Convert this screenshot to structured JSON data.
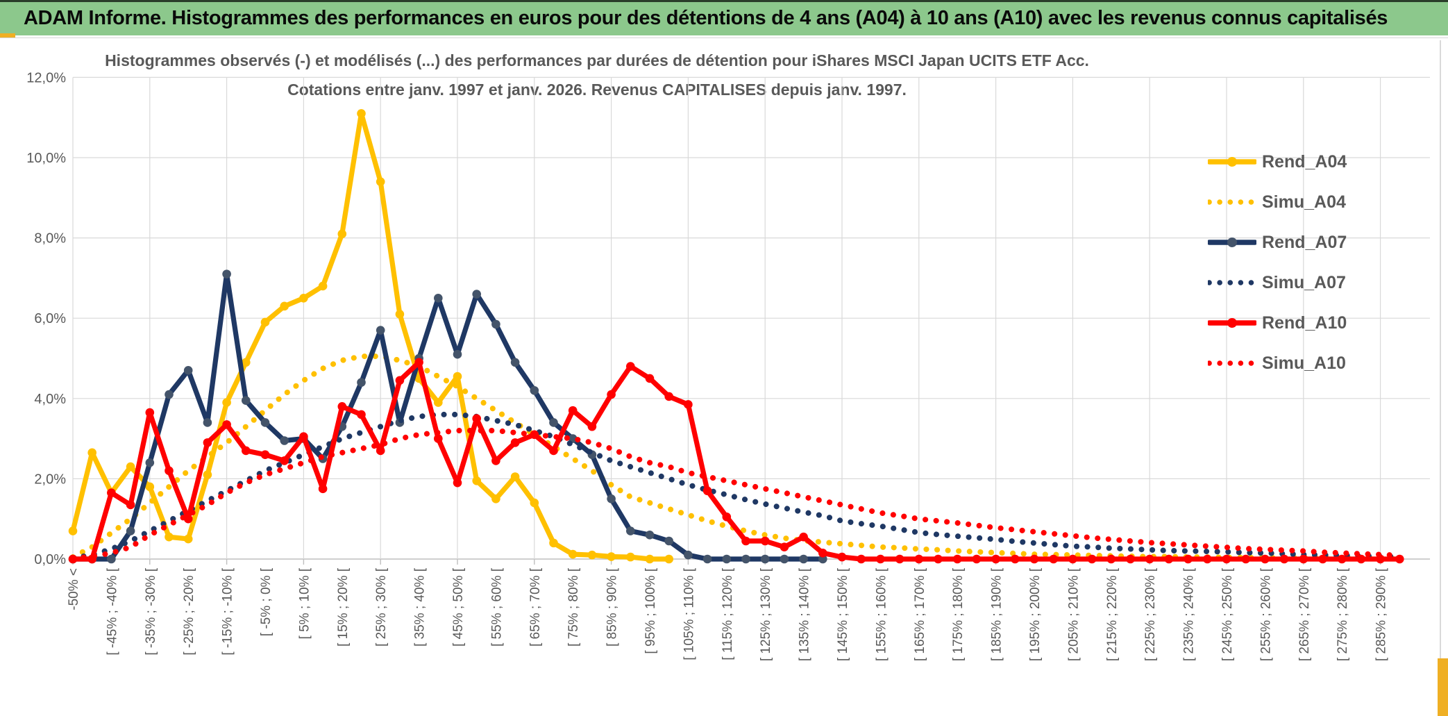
{
  "window": {
    "title": "ADAM Informe. Histogrammes des performances en euros pour des détentions de 4 ans (A04) à 10 ans (A10) avec les revenus connus capitalisés"
  },
  "chart_data": {
    "type": "line",
    "title_line1": "Histogrammes observés (-) et modélisés (...) des performances par durées de détention pour iShares MSCI Japan UCITS ETF Acc.",
    "title_line2": "Cotations entre janv. 1997 et janv. 2026. Revenus CAPITALISES depuis janv. 1997.",
    "ylabel": "",
    "xlabel": "",
    "ylim": [
      0,
      12
    ],
    "y_ticks": [
      "0,0%",
      "2,0%",
      "4,0%",
      "6,0%",
      "8,0%",
      "10,0%",
      "12,0%"
    ],
    "grid": true,
    "legend_position": "right",
    "n_bins": 70,
    "x_tick_every": 2,
    "x_tick_labels": [
      "-50% <",
      "[ -45% ; -40% [",
      "[ -35% ; -30% [",
      "[ -25% ; -20% [",
      "[ -15% ; -10% [",
      "[ -5% ; 0% [",
      "[ 5% ; 10% [",
      "[ 15% ; 20% [",
      "[ 25% ; 30% [",
      "[ 35% ; 40% [",
      "[ 45% ; 50% [",
      "[ 55% ; 60% [",
      "[ 65% ; 70% [",
      "[ 75% ; 80% [",
      "[ 85% ; 90% [",
      "[ 95% ; 100% [",
      "[ 105% ; 110% [",
      "[ 115% ; 120% [",
      "[ 125% ; 130% [",
      "[ 135% ; 140% [",
      "[ 145% ; 150% [",
      "[ 155% ; 160% [",
      "[ 165% ; 170% [",
      "[ 175% ; 180% [",
      "[ 185% ; 190% [",
      "[ 195% ; 200% [",
      "[ 205% ; 210% [",
      "[ 215% ; 220% [",
      "[ 225% ; 230% [",
      "[ 235% ; 240% [",
      "[ 245% ; 250% [",
      "[ 255% ; 260% [",
      "[ 265% ; 270% [",
      "[ 275% ; 280% [",
      "[ 285% ; 290% ["
    ],
    "series": [
      {
        "name": "Rend_A04",
        "style": "solid",
        "color": "#FFC000",
        "marker_color": "#FFC000",
        "values": [
          0.7,
          2.65,
          1.65,
          2.3,
          1.8,
          0.55,
          0.5,
          2.1,
          3.9,
          4.9,
          5.9,
          6.3,
          6.5,
          6.8,
          8.1,
          11.1,
          9.4,
          6.1,
          4.5,
          3.9,
          4.55,
          1.95,
          1.5,
          2.05,
          1.4,
          0.4,
          0.12,
          0.1,
          0.06,
          0.05,
          0,
          0,
          null,
          null,
          null,
          null,
          null,
          null,
          null,
          null,
          null,
          null,
          null,
          null,
          null,
          null,
          null,
          null,
          null,
          null,
          null,
          null,
          null,
          null,
          null,
          null,
          null,
          null,
          null,
          null,
          null,
          null,
          null,
          null,
          null,
          null,
          null,
          null,
          null,
          null
        ]
      },
      {
        "name": "Simu_A04",
        "style": "dotted",
        "color": "#FFC000",
        "marker_color": "#FFC000",
        "values": [
          0.05,
          0.3,
          0.65,
          1.0,
          1.4,
          1.8,
          2.2,
          2.55,
          2.9,
          3.3,
          3.7,
          4.1,
          4.45,
          4.75,
          4.95,
          5.05,
          5.05,
          4.95,
          4.8,
          4.55,
          4.3,
          4.0,
          3.7,
          3.4,
          3.1,
          2.8,
          2.5,
          2.2,
          1.85,
          1.55,
          1.4,
          1.25,
          1.1,
          0.95,
          0.82,
          0.7,
          0.6,
          0.52,
          0.46,
          0.42,
          0.38,
          0.34,
          0.3,
          0.28,
          0.25,
          0.23,
          0.2,
          0.18,
          0.16,
          0.14,
          0.12,
          0.11,
          0.1,
          0.09,
          0.08,
          0.07,
          0.06,
          0.06,
          0.05,
          0.05,
          0.04,
          0.04,
          0.03,
          0.03,
          0.03,
          0.02,
          0.02,
          0.02,
          0.02,
          0.02
        ]
      },
      {
        "name": "Rend_A07",
        "style": "solid",
        "color": "#1F3864",
        "marker_color": "#44546A",
        "values": [
          0,
          0,
          0,
          0.7,
          2.4,
          4.1,
          4.7,
          3.4,
          7.1,
          3.95,
          3.4,
          2.95,
          3.0,
          2.5,
          3.3,
          4.4,
          5.7,
          3.4,
          5.0,
          6.5,
          5.1,
          6.6,
          5.85,
          4.9,
          4.2,
          3.4,
          3.0,
          2.6,
          1.5,
          0.7,
          0.6,
          0.45,
          0.1,
          0,
          0,
          0,
          0,
          0,
          0,
          0,
          null,
          null,
          null,
          null,
          null,
          null,
          null,
          null,
          null,
          null,
          null,
          null,
          null,
          null,
          null,
          null,
          null,
          null,
          null,
          null,
          null,
          null,
          null,
          null,
          null,
          null,
          null,
          null,
          null,
          null
        ]
      },
      {
        "name": "Simu_A07",
        "style": "dotted",
        "color": "#1F3864",
        "marker_color": "#1F3864",
        "values": [
          0.03,
          0.1,
          0.25,
          0.45,
          0.7,
          0.95,
          1.2,
          1.45,
          1.7,
          1.95,
          2.2,
          2.4,
          2.6,
          2.8,
          3.0,
          3.15,
          3.3,
          3.45,
          3.55,
          3.6,
          3.6,
          3.55,
          3.45,
          3.35,
          3.2,
          3.05,
          2.85,
          2.65,
          2.45,
          2.3,
          2.15,
          2.0,
          1.85,
          1.72,
          1.6,
          1.48,
          1.37,
          1.27,
          1.17,
          1.08,
          0.95,
          0.88,
          0.82,
          0.74,
          0.66,
          0.61,
          0.57,
          0.53,
          0.49,
          0.44,
          0.4,
          0.36,
          0.32,
          0.3,
          0.27,
          0.25,
          0.23,
          0.21,
          0.2,
          0.19,
          0.18,
          0.16,
          0.15,
          0.13,
          0.11,
          0.1,
          0.09,
          0.08,
          0.07,
          0.06
        ]
      },
      {
        "name": "Rend_A10",
        "style": "solid",
        "color": "#FF0000",
        "marker_color": "#FF0000",
        "values": [
          0,
          0,
          1.65,
          1.35,
          3.65,
          2.2,
          1.0,
          2.9,
          3.35,
          2.7,
          2.6,
          2.45,
          3.05,
          1.75,
          3.8,
          3.6,
          2.7,
          4.45,
          4.9,
          3.0,
          1.9,
          3.5,
          2.45,
          2.9,
          3.1,
          2.7,
          3.7,
          3.3,
          4.1,
          4.8,
          4.5,
          4.05,
          3.85,
          1.7,
          1.05,
          0.45,
          0.45,
          0.3,
          0.55,
          0.15,
          0.05,
          0,
          0,
          0,
          0,
          0,
          0,
          0,
          0,
          0,
          0,
          0,
          0,
          0,
          0,
          0,
          0,
          0,
          0,
          0,
          0,
          0,
          0,
          0,
          0,
          0,
          0,
          0,
          0,
          0
        ]
      },
      {
        "name": "Simu_A10",
        "style": "dotted",
        "color": "#FF0000",
        "marker_color": "#FF0000",
        "values": [
          0.02,
          0.06,
          0.15,
          0.3,
          0.6,
          0.85,
          1.1,
          1.35,
          1.65,
          1.9,
          2.1,
          2.25,
          2.4,
          2.55,
          2.65,
          2.75,
          2.85,
          3.0,
          3.1,
          3.15,
          3.2,
          3.2,
          3.2,
          3.15,
          3.1,
          3.05,
          3.0,
          2.9,
          2.75,
          2.55,
          2.4,
          2.3,
          2.15,
          2.05,
          1.95,
          1.85,
          1.75,
          1.65,
          1.55,
          1.45,
          1.35,
          1.25,
          1.15,
          1.08,
          1.0,
          0.95,
          0.9,
          0.84,
          0.78,
          0.73,
          0.68,
          0.63,
          0.58,
          0.53,
          0.49,
          0.45,
          0.41,
          0.38,
          0.35,
          0.32,
          0.29,
          0.26,
          0.24,
          0.22,
          0.2,
          0.17,
          0.15,
          0.13,
          0.11,
          0.09
        ]
      }
    ]
  },
  "colors": {
    "titlebar_green": "#8CC88C",
    "grid": "#D9D9D9",
    "axis": "#BFBFBF",
    "axis_text": "#595959",
    "gold_accent": "#EFAF24",
    "series_gold": "#FFC000",
    "series_navy": "#1F3864",
    "series_navy_marker": "#44546A",
    "series_red": "#FF0000"
  }
}
